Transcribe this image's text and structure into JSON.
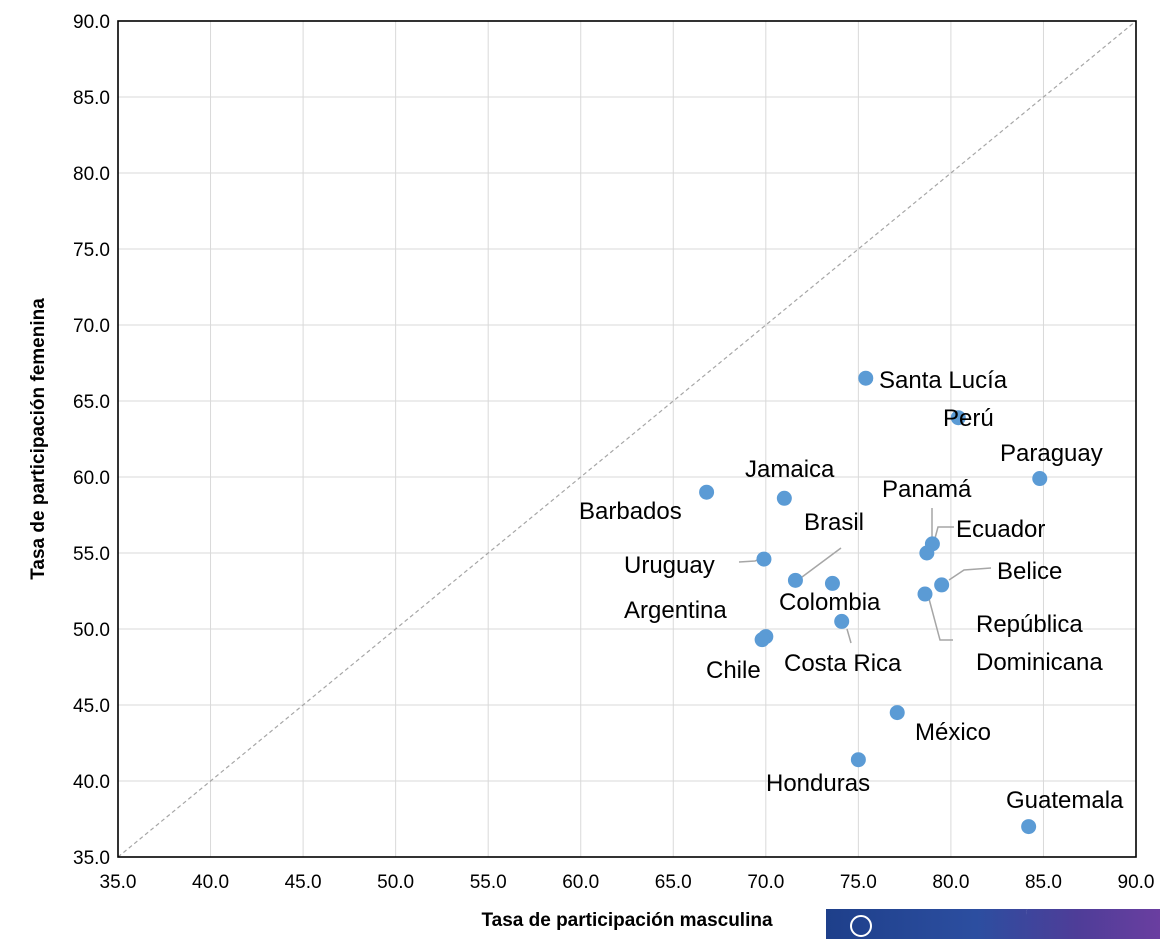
{
  "chart_data": {
    "type": "scatter",
    "xlabel": "Tasa de participación masculina",
    "ylabel": "Tasa de participación femenina",
    "xlim": [
      35,
      90
    ],
    "ylim": [
      35,
      90
    ],
    "xticks": [
      "35.0",
      "40.0",
      "45.0",
      "50.0",
      "55.0",
      "60.0",
      "65.0",
      "70.0",
      "75.0",
      "80.0",
      "85.0",
      "90.0"
    ],
    "yticks": [
      "35.0",
      "40.0",
      "45.0",
      "50.0",
      "55.0",
      "60.0",
      "65.0",
      "70.0",
      "75.0",
      "80.0",
      "85.0",
      "90.0"
    ],
    "grid": true,
    "reference_line": "y = x",
    "marker_color": "#5b9bd5",
    "points": [
      {
        "label": "Santa Lucía",
        "x": 75.4,
        "y": 66.5
      },
      {
        "label": "Perú",
        "x": 80.4,
        "y": 63.9
      },
      {
        "label": "Paraguay",
        "x": 84.8,
        "y": 59.9
      },
      {
        "label": "Barbados",
        "x": 66.8,
        "y": 59.0
      },
      {
        "label": "Jamaica",
        "x": 71.0,
        "y": 58.6
      },
      {
        "label": "Panamá",
        "x": 79.0,
        "y": 55.6
      },
      {
        "label": "Ecuador",
        "x": 78.7,
        "y": 55.0
      },
      {
        "label": "Uruguay",
        "x": 69.9,
        "y": 54.6
      },
      {
        "label": "Brasil",
        "x": 71.6,
        "y": 53.2
      },
      {
        "label": "Colombia",
        "x": 73.6,
        "y": 53.0
      },
      {
        "label": "Belice",
        "x": 79.5,
        "y": 52.9
      },
      {
        "label": "República Dominicana",
        "x": 78.6,
        "y": 52.3
      },
      {
        "label": "Costa Rica",
        "x": 74.1,
        "y": 50.5
      },
      {
        "label": "Argentina",
        "x": 70.0,
        "y": 49.5
      },
      {
        "label": "Chile",
        "x": 69.8,
        "y": 49.3
      },
      {
        "label": "México",
        "x": 77.1,
        "y": 44.5
      },
      {
        "label": "Honduras",
        "x": 75.0,
        "y": 41.4
      },
      {
        "label": "Guatemala",
        "x": 84.2,
        "y": 37.0
      }
    ]
  }
}
